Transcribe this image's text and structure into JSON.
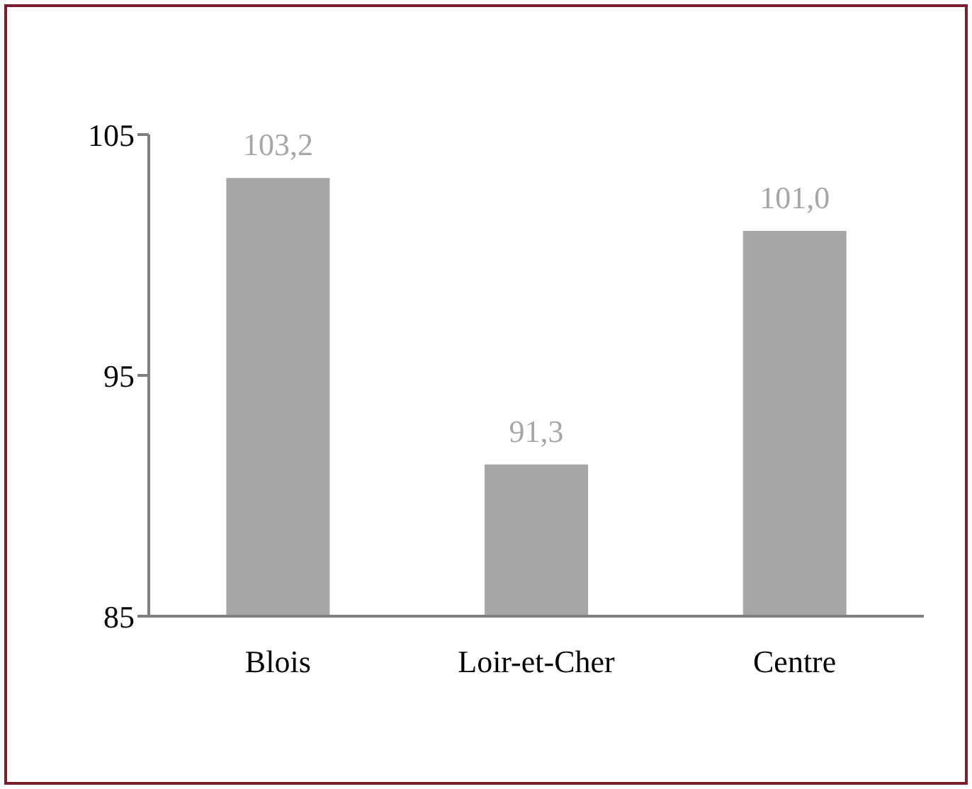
{
  "chart_data": {
    "type": "bar",
    "categories": [
      "Blois",
      "Loir-et-Cher",
      "Centre"
    ],
    "values": [
      103.2,
      91.3,
      101.0
    ],
    "color": "#a6a6a6",
    "value_labels": [
      "103,2",
      "91,3",
      "101,0"
    ],
    "ylim": [
      85,
      105
    ],
    "yticks": [
      85,
      95,
      105
    ]
  }
}
